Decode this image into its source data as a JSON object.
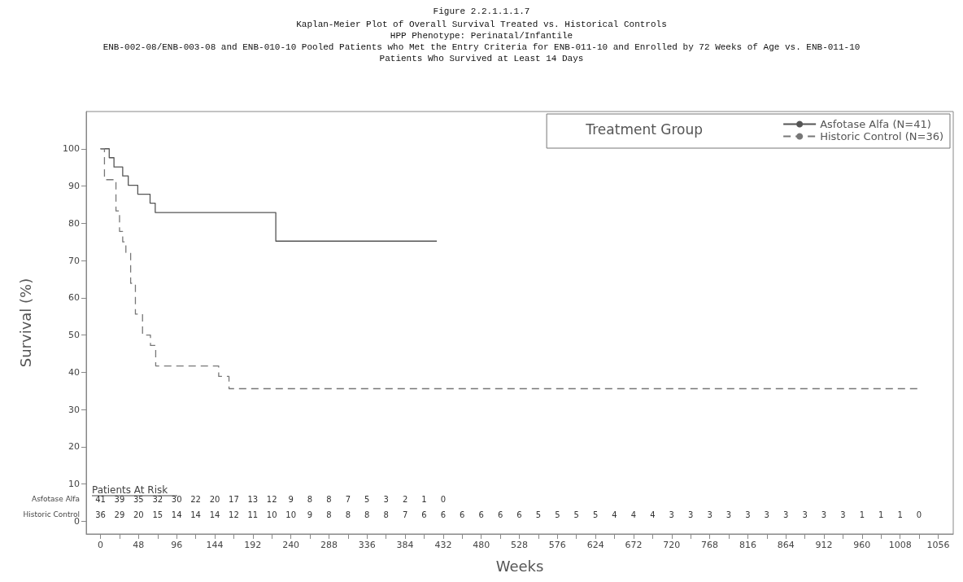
{
  "chart_data": {
    "type": "step",
    "title": "Figure 2.2.1.1.1.7",
    "subtitle": "Kaplan-Meier Plot of Overall Survival Treated vs. Historical Controls\nHPP Phenotype: Perinatal/Infantile\nENB-002-08/ENB-003-08 and ENB-010-10 Pooled Patients who Met the Entry Criteria for ENB-011-10 and Enrolled by 72 Weeks of Age vs. ENB-011-10\nPatients Who Survived at Least 14 Days",
    "xlabel": "Weeks",
    "ylabel": "Survival (%)",
    "legend_title": "Treatment Group",
    "legend": "top right",
    "marker": "none",
    "grid": false,
    "xlim": [
      -18,
      1075
    ],
    "ylim": [
      -3.4,
      110
    ],
    "xticks": [
      0,
      {
        "value": 24,
        "label": null
      },
      48,
      {
        "value": 72,
        "label": null
      },
      96,
      {
        "value": 120,
        "label": null
      },
      144,
      {
        "value": 168,
        "label": null
      },
      192,
      {
        "value": 216,
        "label": null
      },
      240,
      {
        "value": 264,
        "label": null
      },
      288,
      {
        "value": 312,
        "label": null
      },
      336,
      {
        "value": 360,
        "label": null
      },
      384,
      {
        "value": 408,
        "label": null
      },
      432,
      {
        "value": 456,
        "label": null
      },
      480,
      {
        "value": 504,
        "label": null
      },
      528,
      {
        "value": 552,
        "label": null
      },
      576,
      {
        "value": 600,
        "label": null
      },
      624,
      {
        "value": 648,
        "label": null
      },
      672,
      {
        "value": 696,
        "label": null
      },
      720,
      {
        "value": 744,
        "label": null
      },
      768,
      {
        "value": 792,
        "label": null
      },
      816,
      {
        "value": 840,
        "label": null
      },
      864,
      {
        "value": 888,
        "label": null
      },
      912,
      {
        "value": 936,
        "label": null
      },
      960,
      {
        "value": 984,
        "label": null
      },
      1008,
      {
        "value": 1032,
        "label": null
      },
      1056
    ],
    "yticks": [
      0,
      10,
      20,
      30,
      40,
      50,
      60,
      70,
      80,
      90,
      100
    ],
    "series": [
      {
        "name": "Asfotase Alfa (N=41)",
        "color": "#555555",
        "line_style": "solid",
        "x": [
          0,
          11,
          17,
          28,
          35,
          47,
          62.5,
          69,
          221,
          424
        ],
        "values": [
          100,
          97.6,
          95.1,
          92.7,
          90.2,
          87.8,
          85.4,
          82.9,
          75.2,
          75.2
        ]
      },
      {
        "name": "Historic Control (N=36)",
        "color": "#777777",
        "line_style": "dashed",
        "x": [
          0,
          5,
          19.5,
          24,
          28,
          32,
          38,
          44,
          53,
          63,
          69.6,
          149,
          162,
          1032
        ],
        "values": [
          100,
          91.7,
          83.3,
          77.8,
          75,
          72.2,
          63.9,
          55.6,
          50,
          47.2,
          41.7,
          38.9,
          35.6,
          35.6
        ]
      }
    ],
    "annotations": [
      "Patients At Risk",
      "Asfotase Alfa",
      "41 39 35 32 30 22 20 17 13 12 9 8 8 7 5 3 2 1 0",
      "Historic Control",
      "36 29 20 15 14 14 14 12 11 10 10 9 8 8 8 8 7 6 6 6 6 6 6 5 5 5 5 4 4 4 3 3 3 3 3 3 3 3 3 3 1 1 1 0"
    ]
  }
}
